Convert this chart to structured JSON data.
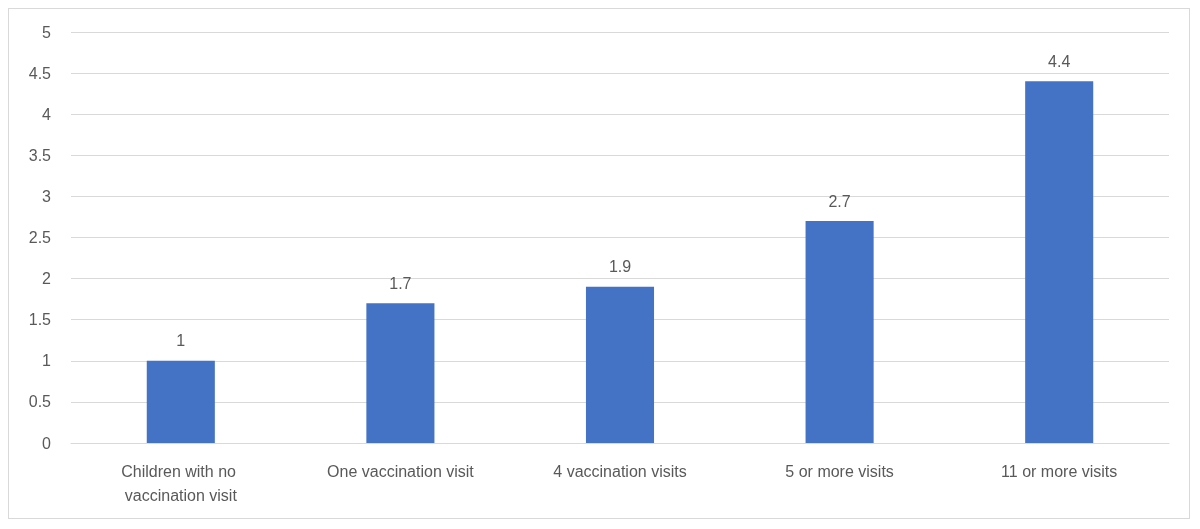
{
  "chart_data": {
    "type": "bar",
    "categories": [
      "Children with no vaccination visit",
      "One vaccination visit",
      "4 vaccination visits",
      "5 or more visits",
      "11 or more visits"
    ],
    "values": [
      1,
      1.7,
      1.9,
      2.7,
      4.4
    ],
    "color": "#4472c4",
    "ylim": [
      0,
      5
    ],
    "yticks": [
      0,
      0.5,
      1,
      1.5,
      2,
      2.5,
      3,
      3.5,
      4,
      4.5,
      5
    ],
    "grid": "y",
    "data_labels": true
  }
}
